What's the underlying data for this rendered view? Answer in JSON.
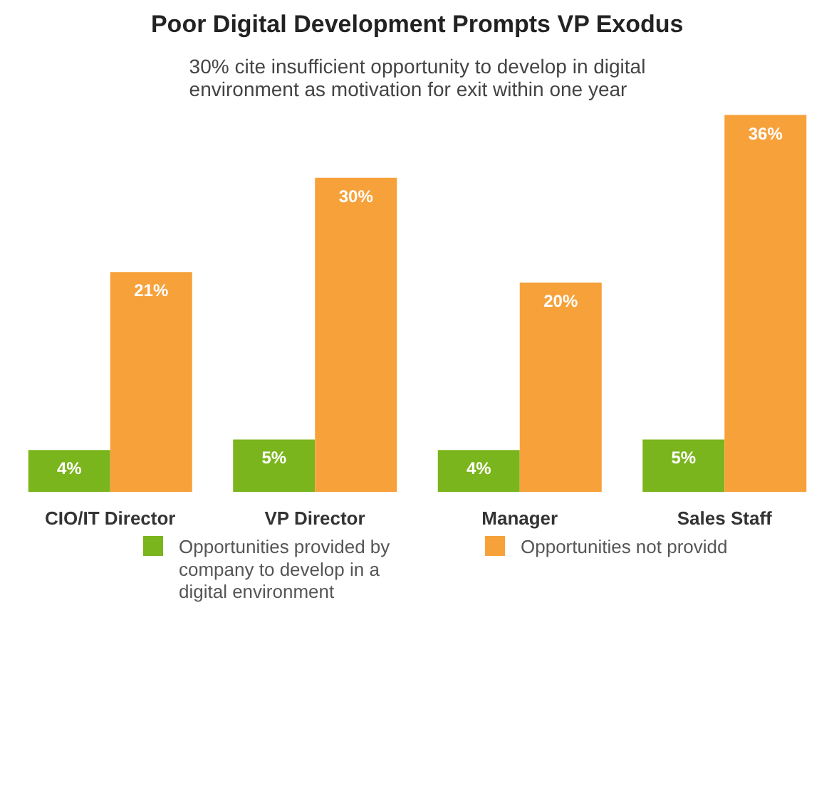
{
  "chart_data": {
    "type": "bar",
    "title": "Poor Digital Development Prompts VP Exodus",
    "subtitle": "30% cite insufficient opportunity to develop in digital environment as motivation for exit within one year",
    "categories": [
      "CIO/IT Director",
      "VP Director",
      "Manager",
      "Sales Staff"
    ],
    "series": [
      {
        "name": "Opportunities provided by company to develop in a digital environment",
        "color": "#7ab51d",
        "values": [
          4,
          5,
          4,
          5
        ],
        "value_labels": [
          "4%",
          "5%",
          "4%",
          "5%"
        ]
      },
      {
        "name": "Opportunities not providd",
        "color": "#f7a13a",
        "values": [
          21,
          30,
          20,
          36
        ],
        "value_labels": [
          "21%",
          "30%",
          "20%",
          "36%"
        ]
      }
    ],
    "legend": "bottom"
  }
}
